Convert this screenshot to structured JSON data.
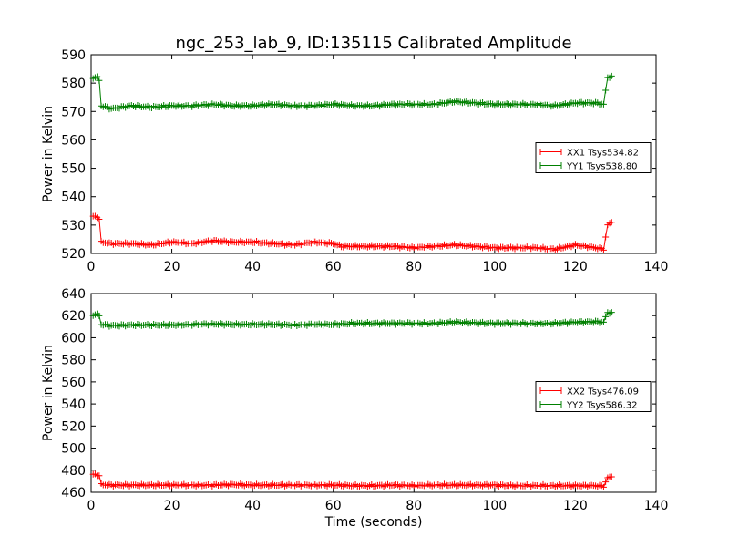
{
  "chart_data": [
    {
      "type": "line",
      "title": "ngc_253_lab_9, ID:135115 Calibrated Amplitude",
      "xlabel": "",
      "ylabel": "Power in Kelvin",
      "xlim": [
        0,
        140
      ],
      "ylim": [
        520,
        590
      ],
      "x_ticks": [
        "0",
        "20",
        "40",
        "60",
        "80",
        "100",
        "120",
        "140"
      ],
      "y_ticks": [
        "520",
        "530",
        "540",
        "550",
        "560",
        "570",
        "580",
        "590"
      ],
      "legend_position": "center-right",
      "grid": false,
      "series": [
        {
          "name": "XX1 Tsys534.82",
          "color": "#ff0000",
          "x": [
            0.5,
            1.5,
            2,
            2.5,
            5,
            10,
            15,
            20,
            25,
            30,
            35,
            40,
            45,
            50,
            55,
            60,
            62,
            65,
            70,
            75,
            80,
            85,
            90,
            95,
            100,
            105,
            110,
            115,
            120,
            125,
            127,
            128,
            129
          ],
          "y": [
            533,
            533,
            532,
            524,
            523.5,
            523.5,
            523,
            524,
            523.5,
            524.5,
            524,
            524,
            523.5,
            523,
            524,
            523.5,
            522.5,
            522.5,
            522.5,
            522.5,
            522,
            522.5,
            523,
            522.5,
            522,
            522,
            522,
            521.5,
            523,
            522,
            521.5,
            530,
            531
          ]
        },
        {
          "name": "YY1 Tsys538.80",
          "color": "#008000",
          "x": [
            0.5,
            1.5,
            2,
            2.5,
            5,
            10,
            15,
            20,
            25,
            30,
            35,
            40,
            45,
            50,
            55,
            60,
            65,
            70,
            75,
            80,
            85,
            90,
            95,
            100,
            105,
            110,
            115,
            120,
            125,
            127,
            128,
            129
          ],
          "y": [
            582,
            582,
            581,
            572,
            571,
            572,
            571.5,
            572,
            572,
            572.5,
            572,
            572,
            572.5,
            572,
            572,
            572.5,
            572,
            572,
            572.5,
            572.5,
            572.5,
            573.5,
            573,
            572.5,
            572.5,
            572.5,
            572,
            573,
            573,
            572.5,
            582,
            582.5
          ]
        }
      ]
    },
    {
      "type": "line",
      "title": "",
      "xlabel": "Time (seconds)",
      "ylabel": "Power in Kelvin",
      "xlim": [
        0,
        140
      ],
      "ylim": [
        460,
        640
      ],
      "x_ticks": [
        "0",
        "20",
        "40",
        "60",
        "80",
        "100",
        "120",
        "140"
      ],
      "y_ticks": [
        "460",
        "480",
        "500",
        "520",
        "540",
        "560",
        "580",
        "600",
        "620",
        "640"
      ],
      "legend_position": "center-right",
      "grid": false,
      "series": [
        {
          "name": "XX2 Tsys476.09",
          "color": "#ff0000",
          "x": [
            0.5,
            1.5,
            2,
            2.5,
            5,
            10,
            15,
            20,
            25,
            30,
            35,
            40,
            45,
            50,
            55,
            60,
            65,
            70,
            75,
            80,
            85,
            90,
            95,
            100,
            105,
            110,
            115,
            120,
            125,
            127,
            128,
            129
          ],
          "y": [
            476,
            476,
            475,
            467,
            466.5,
            466.5,
            466.5,
            466.5,
            466.5,
            466.5,
            467,
            466.5,
            466.5,
            466.5,
            466.5,
            466.5,
            466,
            466,
            466.5,
            466,
            466.5,
            466.5,
            466.5,
            466.5,
            466,
            466,
            466,
            466,
            466,
            465.5,
            473,
            474
          ]
        },
        {
          "name": "YY2 Tsys586.32",
          "color": "#008000",
          "x": [
            0.5,
            1.5,
            2,
            2.5,
            5,
            10,
            15,
            20,
            25,
            30,
            35,
            40,
            45,
            50,
            55,
            60,
            65,
            70,
            75,
            80,
            85,
            90,
            95,
            100,
            105,
            110,
            115,
            120,
            125,
            127,
            128,
            129
          ],
          "y": [
            621,
            621,
            620,
            612,
            611,
            611.5,
            611.5,
            611.5,
            612,
            612.5,
            612,
            612,
            612,
            611.5,
            612,
            612,
            613,
            613,
            613,
            613,
            613,
            614,
            613.5,
            613,
            613,
            613,
            613,
            614,
            614.5,
            614,
            623,
            623
          ]
        }
      ]
    }
  ]
}
